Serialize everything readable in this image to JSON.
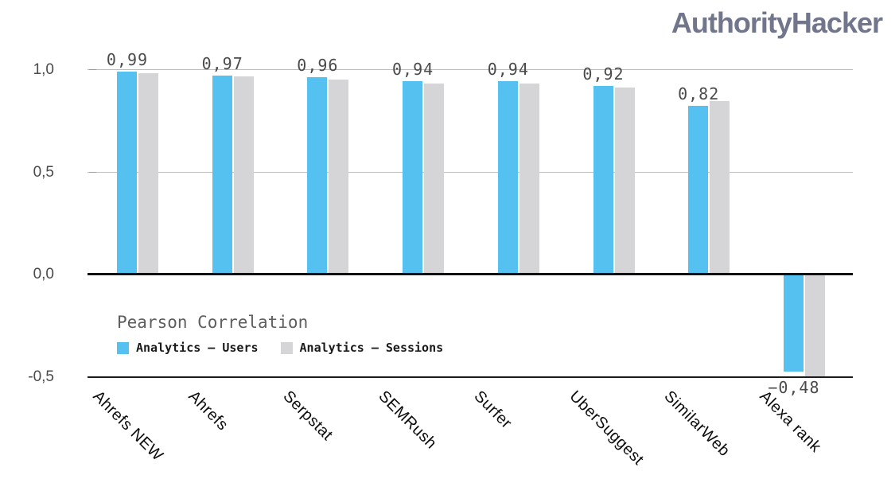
{
  "header": {
    "logo_text": "AuthorityHacker"
  },
  "colors": {
    "users_bar": "#55c1f0",
    "sessions_bar": "#d5d5d7",
    "gridline": "#bcbcbc",
    "zero_line": "#111111",
    "bottom_line": "#1c1c1c",
    "value_label": "#4b4b4b",
    "axis_label": "#4a4a4a",
    "category_label": "#0d0d0d",
    "logo": "#71768d"
  },
  "legend": {
    "title": "Pearson Correlation",
    "items": [
      {
        "label": "Analytics – Users",
        "color_key": "users_bar"
      },
      {
        "label": "Analytics – Sessions",
        "color_key": "sessions_bar"
      }
    ]
  },
  "chart_data": {
    "type": "bar",
    "title": "Pearson Correlation",
    "xlabel": "",
    "ylabel": "",
    "ylim": [
      -0.5,
      1.0
    ],
    "grid": true,
    "legend_position": "inside-left-middle",
    "categories": [
      "Ahrefs NEW",
      "Ahrefs",
      "Serpstat",
      "SEMRush",
      "Surfer",
      "UberSuggest",
      "SimilarWeb",
      "Alexa rank"
    ],
    "series": [
      {
        "name": "Analytics – Users",
        "color_key": "users_bar",
        "values": [
          0.99,
          0.97,
          0.96,
          0.94,
          0.94,
          0.92,
          0.82,
          -0.48
        ]
      },
      {
        "name": "Analytics – Sessions",
        "color_key": "sessions_bar",
        "values": [
          0.98,
          0.965,
          0.95,
          0.93,
          0.93,
          0.91,
          0.845,
          -0.5
        ]
      }
    ],
    "value_labels": [
      "0,99",
      "0,97",
      "0,96",
      "0,94",
      "0,94",
      "0,92",
      "0,82",
      "−0,48"
    ],
    "y_ticks": [
      {
        "value": 1.0,
        "label": "1,0"
      },
      {
        "value": 0.5,
        "label": "0,5"
      },
      {
        "value": 0.0,
        "label": "0,0"
      },
      {
        "value": -0.5,
        "label": "-0,5"
      }
    ]
  }
}
